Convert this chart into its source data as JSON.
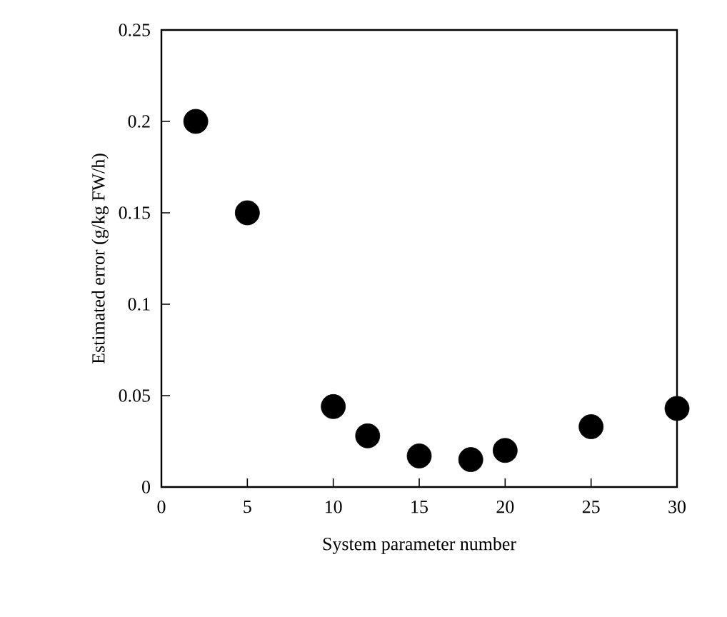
{
  "chart_data": {
    "type": "scatter",
    "xlabel": "System parameter number",
    "ylabel": "Estimated error (g/kg FW/h)",
    "x": [
      2,
      5,
      10,
      12,
      15,
      18,
      20,
      25,
      30
    ],
    "values": [
      0.2,
      0.15,
      0.044,
      0.028,
      0.017,
      0.015,
      0.02,
      0.033,
      0.043
    ],
    "color": "#000000",
    "marker": "circle",
    "xlim": [
      0,
      30
    ],
    "xticks": [
      0,
      5,
      10,
      15,
      20,
      25,
      30
    ],
    "ylim": [
      0,
      0.25
    ],
    "yticks": [
      0,
      0.05,
      0.1,
      0.15,
      0.2,
      0.25
    ],
    "grid": false
  }
}
